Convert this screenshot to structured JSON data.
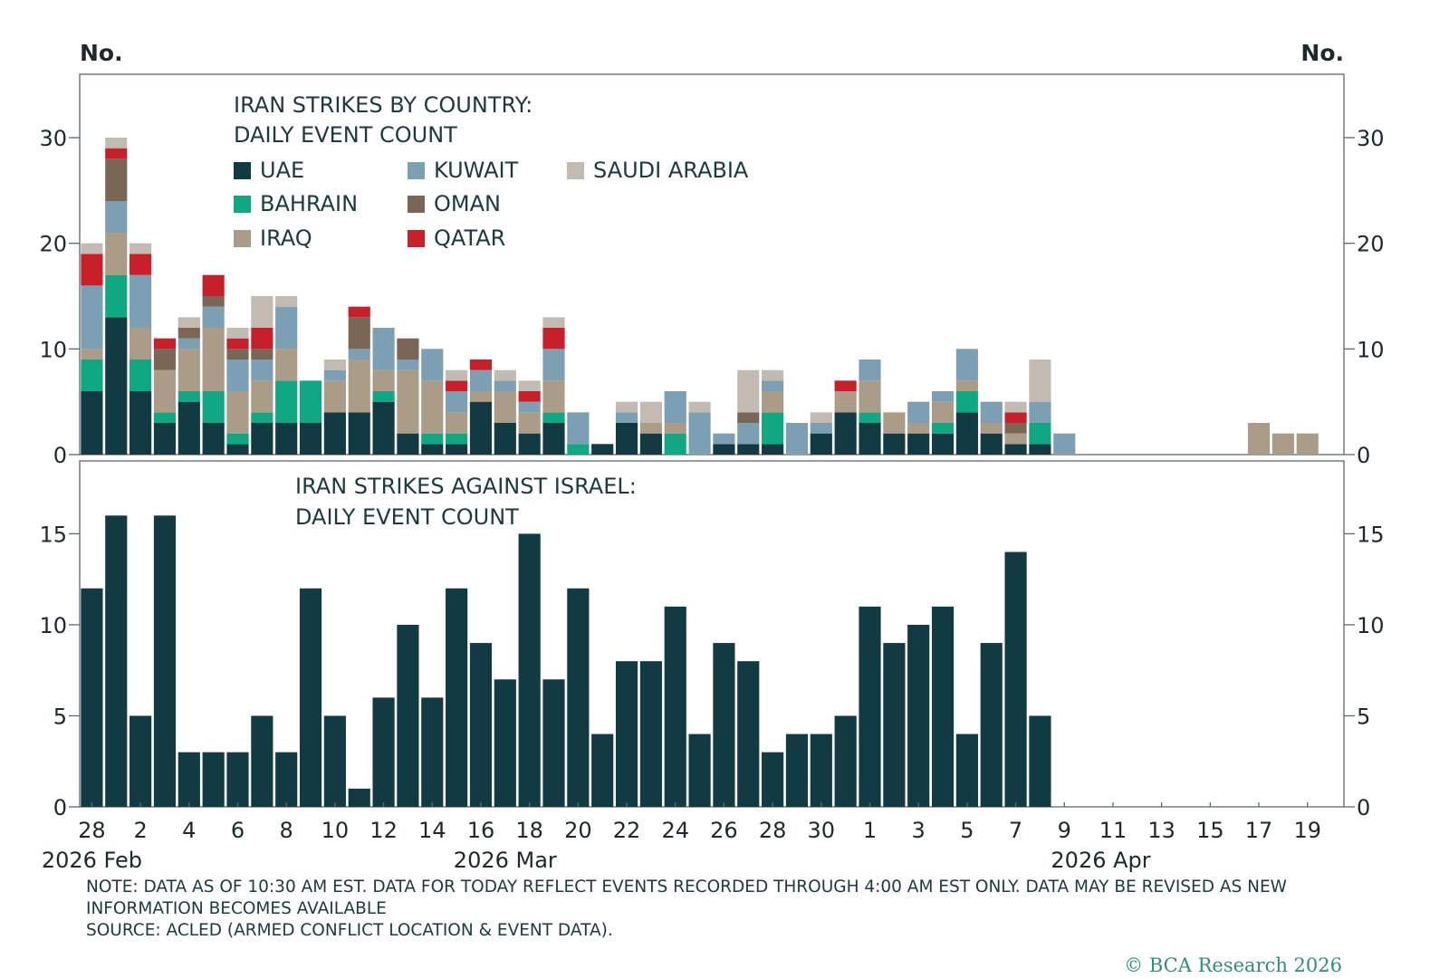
{
  "chart_data": [
    {
      "type": "bar",
      "stacked": true,
      "title": [
        "IRAN STRIKES BY COUNTRY:",
        "DAILY EVENT COUNT"
      ],
      "ylabel_left": "No.",
      "ylabel_right": "No.",
      "ylim": [
        0,
        36
      ],
      "yticks": [
        0,
        10,
        20,
        30
      ],
      "days": 52,
      "series": [
        {
          "name": "UAE",
          "color": "#123a42",
          "values": [
            6,
            13,
            6,
            3,
            5,
            3,
            1,
            3,
            3,
            3,
            4,
            4,
            5,
            2,
            1,
            1,
            5,
            3,
            2,
            3,
            0,
            1,
            3,
            2,
            0,
            0,
            1,
            1,
            1,
            0,
            2,
            4,
            3,
            2,
            2,
            2,
            4,
            2,
            1,
            1,
            0,
            0,
            0,
            0,
            0,
            0,
            0,
            0,
            0,
            0,
            0,
            0
          ]
        },
        {
          "name": "BAHRAIN",
          "color": "#10a883",
          "values": [
            3,
            4,
            3,
            1,
            1,
            3,
            1,
            1,
            4,
            4,
            0,
            0,
            1,
            0,
            1,
            1,
            0,
            0,
            0,
            1,
            1,
            0,
            0,
            0,
            2,
            0,
            0,
            0,
            3,
            0,
            0,
            0,
            1,
            0,
            0,
            1,
            2,
            0,
            0,
            2,
            0,
            0,
            0,
            0,
            0,
            0,
            0,
            0,
            0,
            0,
            0,
            0
          ]
        },
        {
          "name": "IRAQ",
          "color": "#ab9c87",
          "values": [
            1,
            4,
            3,
            4,
            4,
            6,
            4,
            3,
            3,
            0,
            3,
            5,
            2,
            6,
            5,
            2,
            1,
            3,
            2,
            3,
            0,
            0,
            0,
            1,
            1,
            0,
            0,
            0,
            2,
            0,
            0,
            2,
            3,
            2,
            1,
            2,
            1,
            1,
            1,
            0,
            0,
            0,
            0,
            0,
            0,
            0,
            0,
            0,
            3,
            2,
            2,
            0
          ]
        },
        {
          "name": "KUWAIT",
          "color": "#7d9fb4",
          "values": [
            6,
            3,
            5,
            0,
            1,
            2,
            3,
            2,
            4,
            0,
            1,
            1,
            4,
            1,
            3,
            2,
            2,
            1,
            1,
            3,
            3,
            0,
            1,
            0,
            3,
            4,
            1,
            2,
            1,
            3,
            1,
            0,
            2,
            0,
            2,
            1,
            3,
            2,
            0,
            2,
            2,
            0,
            0,
            0,
            0,
            0,
            0,
            0,
            0,
            0,
            0,
            0
          ]
        },
        {
          "name": "OMAN",
          "color": "#796654",
          "values": [
            0,
            4,
            0,
            2,
            1,
            1,
            1,
            1,
            0,
            0,
            0,
            3,
            0,
            2,
            0,
            0,
            0,
            0,
            0,
            0,
            0,
            0,
            0,
            0,
            0,
            0,
            0,
            1,
            0,
            0,
            0,
            0,
            0,
            0,
            0,
            0,
            0,
            0,
            1,
            0,
            0,
            0,
            0,
            0,
            0,
            0,
            0,
            0,
            0,
            0,
            0,
            0
          ]
        },
        {
          "name": "QATAR",
          "color": "#c7202b",
          "values": [
            3,
            1,
            2,
            1,
            0,
            2,
            1,
            2,
            0,
            0,
            0,
            1,
            0,
            0,
            0,
            1,
            1,
            0,
            1,
            2,
            0,
            0,
            0,
            0,
            0,
            0,
            0,
            0,
            0,
            0,
            0,
            1,
            0,
            0,
            0,
            0,
            0,
            0,
            1,
            0,
            0,
            0,
            0,
            0,
            0,
            0,
            0,
            0,
            0,
            0,
            0,
            0
          ]
        },
        {
          "name": "SAUDI ARABIA",
          "color": "#c3bbb1",
          "values": [
            1,
            1,
            1,
            0,
            1,
            0,
            1,
            3,
            1,
            0,
            1,
            0,
            0,
            0,
            0,
            1,
            0,
            1,
            1,
            1,
            0,
            0,
            1,
            2,
            0,
            1,
            0,
            4,
            1,
            0,
            1,
            0,
            0,
            0,
            0,
            0,
            0,
            0,
            1,
            4,
            0,
            0,
            0,
            0,
            0,
            0,
            0,
            0,
            0,
            0,
            0,
            0
          ]
        }
      ]
    },
    {
      "type": "bar",
      "title": [
        "IRAN STRIKES AGAINST ISRAEL:",
        "DAILY EVENT COUNT"
      ],
      "ylim": [
        0,
        19
      ],
      "yticks": [
        0,
        5,
        10,
        15
      ],
      "days": 52,
      "series": [
        {
          "name": "Israel",
          "color": "#123a42",
          "values": [
            12,
            16,
            5,
            16,
            3,
            3,
            3,
            5,
            3,
            12,
            5,
            1,
            6,
            10,
            6,
            12,
            9,
            7,
            15,
            7,
            12,
            4,
            8,
            8,
            11,
            4,
            9,
            8,
            3,
            4,
            4,
            5,
            11,
            9,
            10,
            11,
            4,
            9,
            14,
            5,
            0,
            0,
            0,
            0,
            0,
            0,
            0,
            0,
            0,
            0,
            0,
            0
          ]
        }
      ]
    }
  ],
  "x_axis": {
    "ticks": [
      "28",
      "2",
      "4",
      "6",
      "8",
      "10",
      "12",
      "14",
      "16",
      "18",
      "20",
      "22",
      "24",
      "26",
      "28",
      "30",
      "1",
      "3",
      "5",
      "7",
      "9",
      "11",
      "13",
      "15",
      "17",
      "19"
    ],
    "tick_day_index": [
      0,
      2,
      4,
      6,
      8,
      10,
      12,
      14,
      16,
      18,
      20,
      22,
      24,
      26,
      28,
      30,
      32,
      34,
      36,
      38,
      40,
      42,
      44,
      46,
      48,
      50
    ],
    "groups": [
      {
        "label": "2026 Feb",
        "day_index": 0
      },
      {
        "label": "2026 Mar",
        "day_index": 17
      },
      {
        "label": "2026 Apr",
        "day_index": 41.5
      }
    ]
  },
  "notes": {
    "line1": "NOTE: DATA AS OF 10:30 AM EST. DATA FOR TODAY REFLECT EVENTS RECORDED THROUGH 4:00 AM EST ONLY. DATA MAY BE REVISED AS NEW",
    "line2": "INFORMATION BECOMES AVAILABLE",
    "source": "SOURCE: ACLED (ARMED CONFLICT LOCATION & EVENT DATA)."
  },
  "brand": "© BCA Research 2026"
}
